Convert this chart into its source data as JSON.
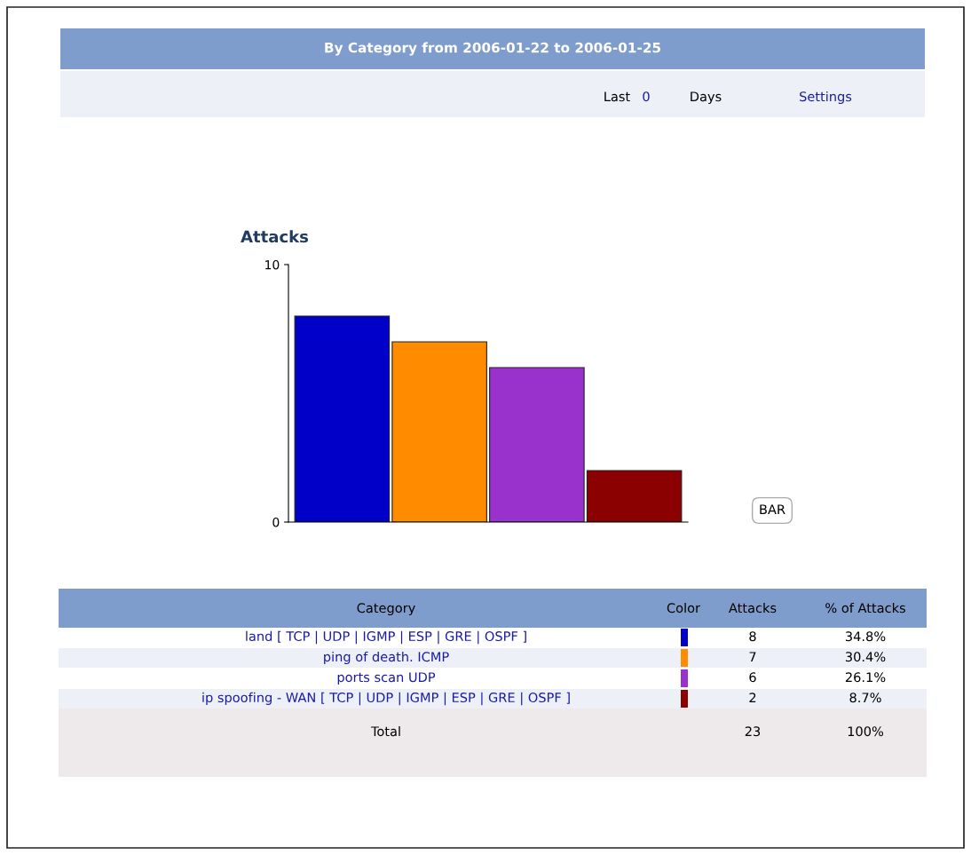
{
  "chart_data": {
    "type": "bar",
    "title": "By Category from 2006-01-22 to 2006-01-25",
    "ylabel": "Attacks",
    "categories": [
      null,
      null,
      null,
      null
    ],
    "values": [
      8,
      7,
      6,
      2
    ],
    "colors": [
      "#0000c8",
      "#ff8c00",
      "#9932cc",
      "#8b0000"
    ],
    "ylim": [
      0,
      10
    ],
    "yticks": [
      0,
      10
    ],
    "tick_labels": "y",
    "annotations": [
      "Category",
      "Color",
      "Attacks",
      "% of Attacks",
      "land [ TCP | UDP | IGMP | ESP | GRE | OSPF ]",
      "8",
      "34.8%",
      "ping of death. ICMP",
      "7",
      "30.4%",
      "ports scan UDP",
      "6",
      "26.1%",
      "ip spoofing - WAN [ TCP | UDP | IGMP | ESP | GRE | OSPF ]",
      "2",
      "8.7%",
      "Total",
      "23",
      "100%",
      "Last",
      "0",
      "Days",
      "Settings",
      "BAR"
    ]
  }
}
